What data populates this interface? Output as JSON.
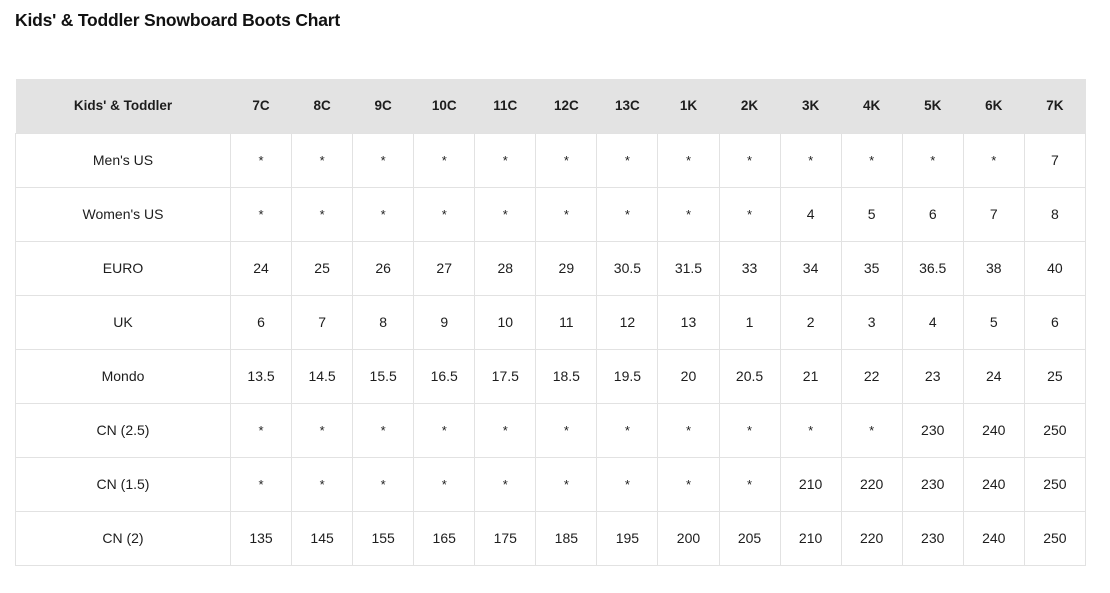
{
  "page": {
    "title": "Kids' & Toddler Snowboard Boots Chart"
  },
  "colors": {
    "header_bg": "#e3e3e3",
    "cell_border": "#e2e2e2",
    "text": "#1d1d1d",
    "background": "#ffffff"
  },
  "chart_data": {
    "type": "table",
    "title": "Kids' & Toddler Snowboard Boots Chart",
    "header": [
      "Kids' & Toddler",
      "7C",
      "8C",
      "9C",
      "10C",
      "11C",
      "12C",
      "13C",
      "1K",
      "2K",
      "3K",
      "4K",
      "5K",
      "6K",
      "7K"
    ],
    "rows": [
      {
        "label": "Men's US",
        "values": [
          "*",
          "*",
          "*",
          "*",
          "*",
          "*",
          "*",
          "*",
          "*",
          "*",
          "*",
          "*",
          "*",
          "7"
        ]
      },
      {
        "label": "Women's US",
        "values": [
          "*",
          "*",
          "*",
          "*",
          "*",
          "*",
          "*",
          "*",
          "*",
          "4",
          "5",
          "6",
          "7",
          "8"
        ]
      },
      {
        "label": "EURO",
        "values": [
          "24",
          "25",
          "26",
          "27",
          "28",
          "29",
          "30.5",
          "31.5",
          "33",
          "34",
          "35",
          "36.5",
          "38",
          "40"
        ]
      },
      {
        "label": "UK",
        "values": [
          "6",
          "7",
          "8",
          "9",
          "10",
          "11",
          "12",
          "13",
          "1",
          "2",
          "3",
          "4",
          "5",
          "6"
        ]
      },
      {
        "label": "Mondo",
        "values": [
          "13.5",
          "14.5",
          "15.5",
          "16.5",
          "17.5",
          "18.5",
          "19.5",
          "20",
          "20.5",
          "21",
          "22",
          "23",
          "24",
          "25"
        ]
      },
      {
        "label": "CN (2.5)",
        "values": [
          "*",
          "*",
          "*",
          "*",
          "*",
          "*",
          "*",
          "*",
          "*",
          "*",
          "*",
          "230",
          "240",
          "250"
        ]
      },
      {
        "label": "CN (1.5)",
        "values": [
          "*",
          "*",
          "*",
          "*",
          "*",
          "*",
          "*",
          "*",
          "*",
          "210",
          "220",
          "230",
          "240",
          "250"
        ]
      },
      {
        "label": "CN (2)",
        "values": [
          "135",
          "145",
          "155",
          "165",
          "175",
          "185",
          "195",
          "200",
          "205",
          "210",
          "220",
          "230",
          "240",
          "250"
        ]
      }
    ]
  }
}
